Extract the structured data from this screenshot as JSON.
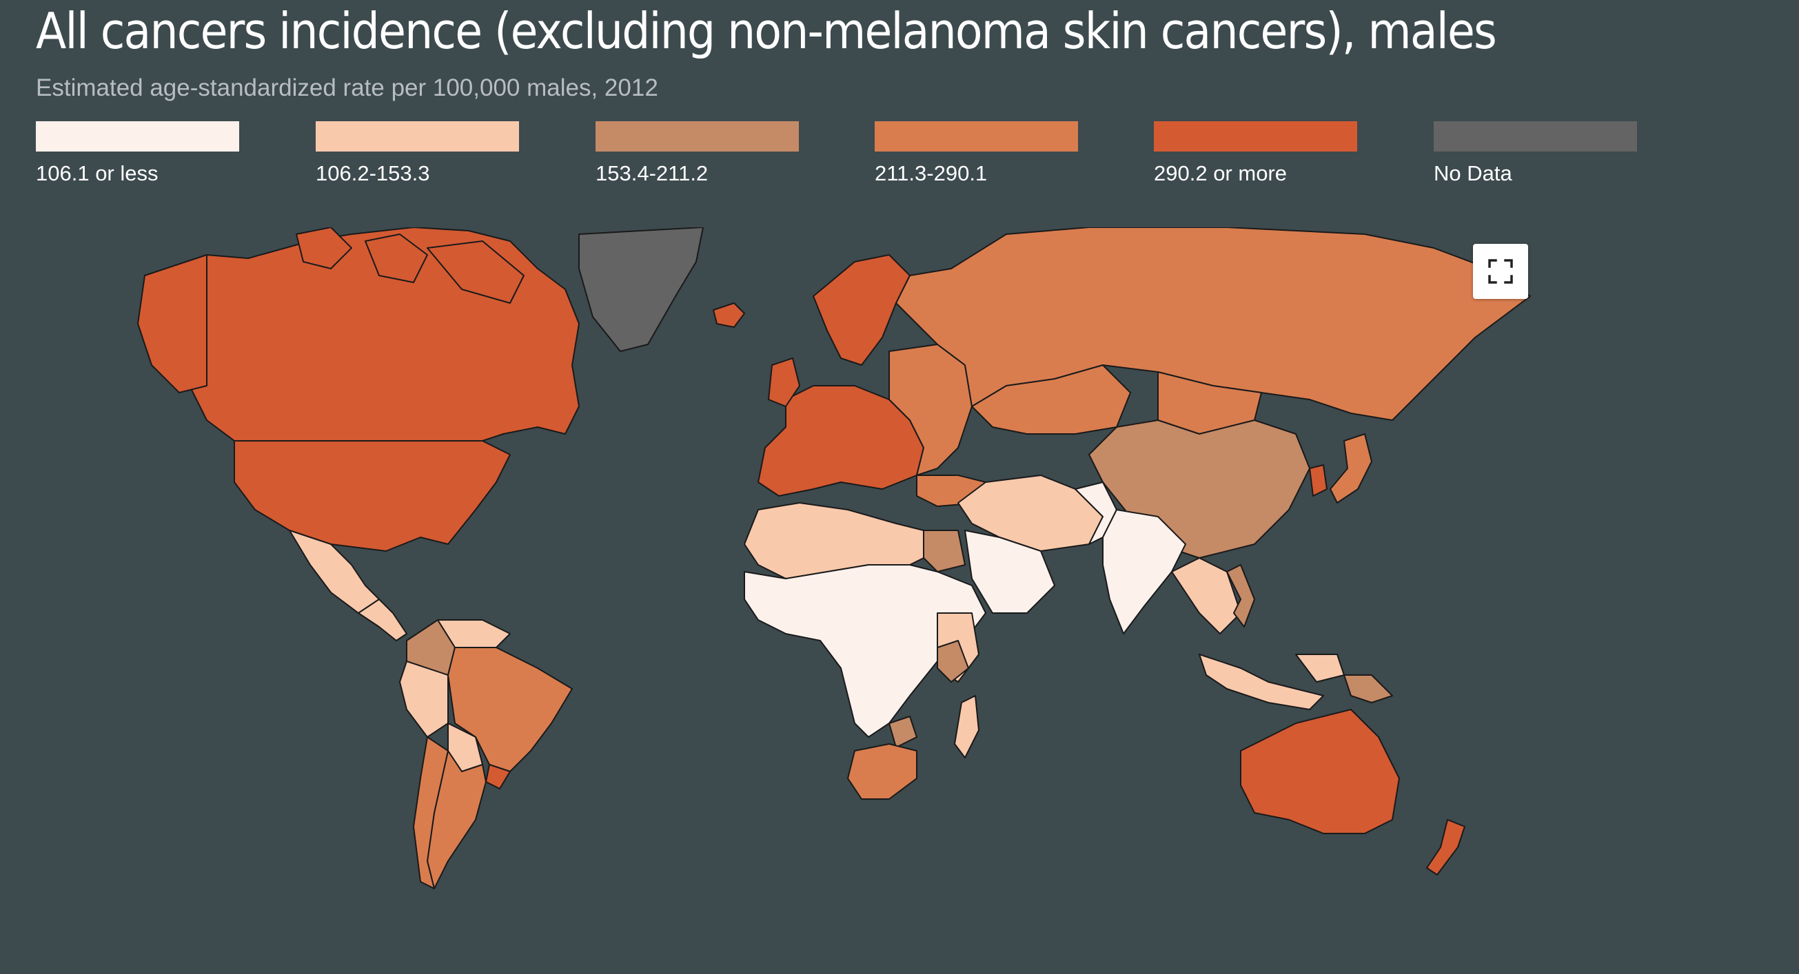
{
  "title": "All cancers incidence (excluding non-melanoma skin cancers), males",
  "subtitle": "Estimated age-standardized rate per 100,000 males, 2012",
  "legend": [
    {
      "label": "106.1 or less",
      "color": "#fdf1ec"
    },
    {
      "label": "106.2-153.3",
      "color": "#f9c9ac"
    },
    {
      "label": "153.4-211.2",
      "color": "#c58a66"
    },
    {
      "label": "211.3-290.1",
      "color": "#d97d4f"
    },
    {
      "label": "290.2 or more",
      "color": "#d45a32"
    },
    {
      "label": "No Data",
      "color": "#646464"
    }
  ],
  "colors": {
    "background": "#3d4a4e",
    "border": "#1a1a1a"
  },
  "map_data": {
    "regions": [
      {
        "name": "Canada",
        "class": "290.2 or more"
      },
      {
        "name": "United States",
        "class": "290.2 or more"
      },
      {
        "name": "Greenland",
        "class": "No Data"
      },
      {
        "name": "Iceland",
        "class": "290.2 or more"
      },
      {
        "name": "Mexico",
        "class": "106.2-153.3"
      },
      {
        "name": "Central America",
        "class": "106.2-153.3"
      },
      {
        "name": "Colombia",
        "class": "153.4-211.2"
      },
      {
        "name": "Venezuela",
        "class": "106.2-153.3"
      },
      {
        "name": "Brazil",
        "class": "211.3-290.1"
      },
      {
        "name": "Peru",
        "class": "106.2-153.3"
      },
      {
        "name": "Bolivia",
        "class": "106.2-153.3"
      },
      {
        "name": "Argentina",
        "class": "211.3-290.1"
      },
      {
        "name": "Chile",
        "class": "211.3-290.1"
      },
      {
        "name": "Uruguay",
        "class": "290.2 or more"
      },
      {
        "name": "Western Europe",
        "class": "290.2 or more"
      },
      {
        "name": "Scandinavia",
        "class": "290.2 or more"
      },
      {
        "name": "Eastern Europe",
        "class": "211.3-290.1"
      },
      {
        "name": "Russia",
        "class": "211.3-290.1"
      },
      {
        "name": "Kazakhstan",
        "class": "211.3-290.1"
      },
      {
        "name": "Mongolia",
        "class": "211.3-290.1"
      },
      {
        "name": "China",
        "class": "153.4-211.2"
      },
      {
        "name": "Korea",
        "class": "290.2 or more"
      },
      {
        "name": "Japan",
        "class": "211.3-290.1"
      },
      {
        "name": "Turkey",
        "class": "211.3-290.1"
      },
      {
        "name": "Middle East",
        "class": "106.2-153.3"
      },
      {
        "name": "Saudi Arabia",
        "class": "106.1 or less"
      },
      {
        "name": "India",
        "class": "106.1 or less"
      },
      {
        "name": "Pakistan",
        "class": "106.1 or less"
      },
      {
        "name": "Southeast Asia",
        "class": "106.2-153.3"
      },
      {
        "name": "Vietnam",
        "class": "153.4-211.2"
      },
      {
        "name": "Indonesia",
        "class": "106.2-153.3"
      },
      {
        "name": "Papua New Guinea",
        "class": "153.4-211.2"
      },
      {
        "name": "Australia",
        "class": "290.2 or more"
      },
      {
        "name": "New Zealand",
        "class": "290.2 or more"
      },
      {
        "name": "North Africa",
        "class": "106.2-153.3"
      },
      {
        "name": "Egypt",
        "class": "153.4-211.2"
      },
      {
        "name": "Sub-Saharan Africa",
        "class": "106.1 or less"
      },
      {
        "name": "East Africa",
        "class": "106.2-153.3"
      },
      {
        "name": "Kenya",
        "class": "153.4-211.2"
      },
      {
        "name": "Zimbabwe",
        "class": "153.4-211.2"
      },
      {
        "name": "South Africa",
        "class": "211.3-290.1"
      },
      {
        "name": "Madagascar",
        "class": "106.2-153.3"
      }
    ]
  }
}
